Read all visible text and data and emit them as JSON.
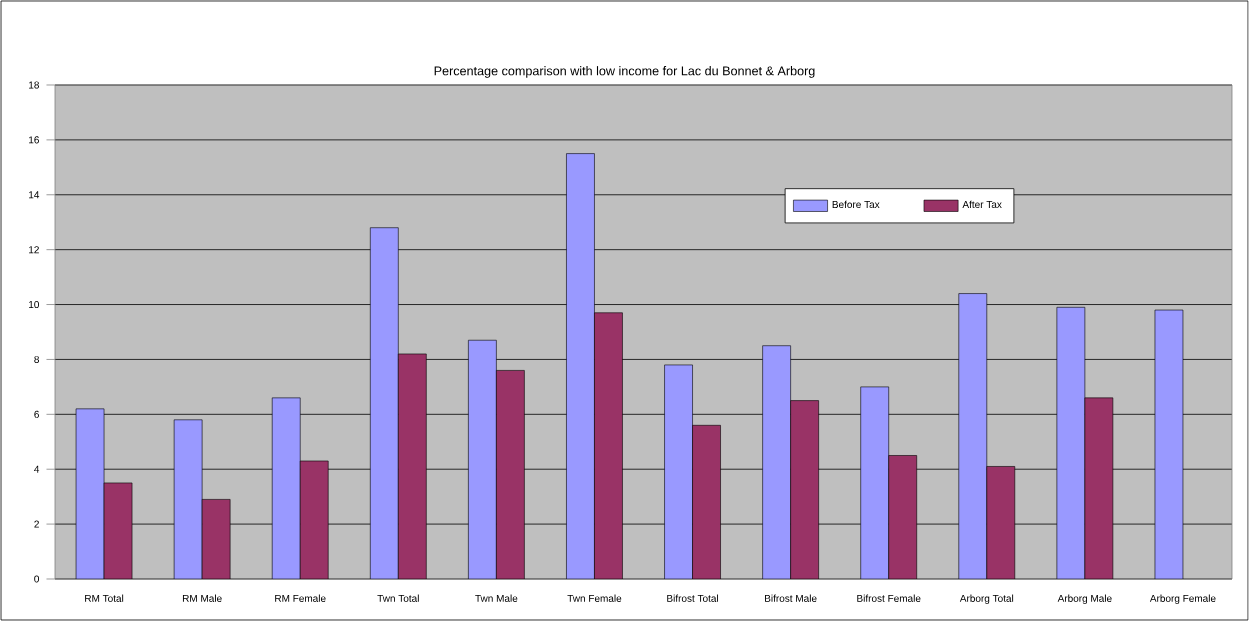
{
  "chart_data": {
    "type": "bar",
    "title": "Percentage comparison with low income for Lac du Bonnet & Arborg",
    "categories": [
      "RM Total",
      "RM Male",
      "RM Female",
      "Twn Total",
      "Twn Male",
      "Twn Female",
      "Bifrost Total",
      "Bifrost Male",
      "Bifrost Female",
      "Arborg Total",
      "Arborg Male",
      "Arborg Female"
    ],
    "series": [
      {
        "name": "Before Tax",
        "color": "#9999ff",
        "values": [
          6.2,
          5.8,
          6.6,
          12.8,
          8.7,
          15.5,
          7.8,
          8.5,
          7.0,
          10.4,
          9.9,
          9.8
        ]
      },
      {
        "name": "After Tax",
        "color": "#993366",
        "values": [
          3.5,
          2.9,
          4.3,
          8.2,
          7.6,
          9.7,
          5.6,
          6.5,
          4.5,
          4.1,
          6.6,
          null
        ]
      }
    ],
    "ylim": [
      0,
      18
    ],
    "yticks": [
      0,
      2,
      4,
      6,
      8,
      10,
      12,
      14,
      16,
      18
    ],
    "grid": "y",
    "legend": "top right"
  }
}
